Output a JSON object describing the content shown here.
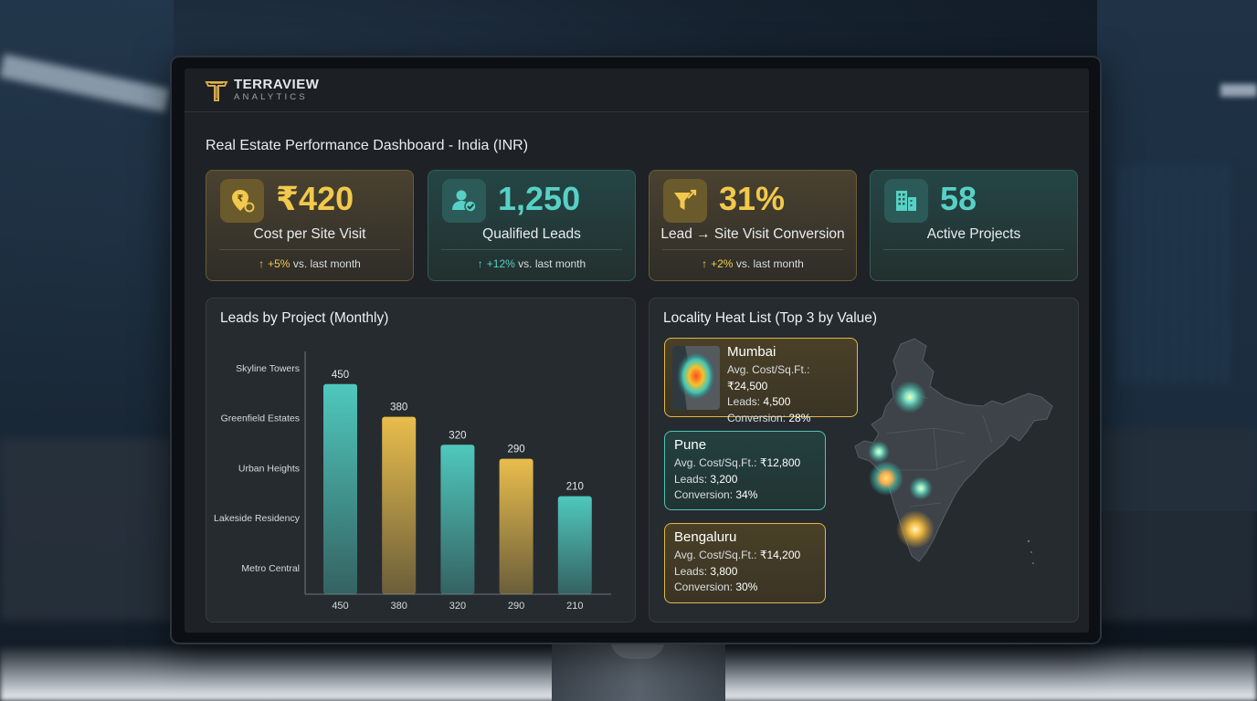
{
  "brand": {
    "name": "TERRAVIEW",
    "sub": "ANALYTICS"
  },
  "dashboard_title": "Real Estate Performance Dashboard - India (INR)",
  "kpis": [
    {
      "value": "₹420",
      "label": "Cost per Site Visit",
      "arrow": "↑",
      "pct": "+5%",
      "suffix": " vs. last month",
      "theme": "gold",
      "icon": "location-pin-rupee-icon"
    },
    {
      "value": "1,250",
      "label": "Qualified Leads",
      "arrow": "↑",
      "pct": "+12%",
      "suffix": " vs. last month",
      "theme": "teal",
      "icon": "user-check-icon"
    },
    {
      "value": "31%",
      "label": "Lead → Site Visit Conversion",
      "arrow": "↑",
      "pct": "+2%",
      "suffix": " vs. last month",
      "theme": "gold",
      "icon": "funnel-icon"
    },
    {
      "value": "58",
      "label": "Active Projects",
      "arrow": "",
      "pct": "",
      "suffix": "",
      "theme": "teal",
      "icon": "buildings-icon"
    }
  ],
  "leads_panel": {
    "title": "Leads by Project (Monthly)"
  },
  "chart_data": {
    "type": "bar",
    "title": "Leads by Project (Monthly)",
    "categories": [
      "Skyline Towers",
      "Greenfield Estates",
      "Urban Heights",
      "Lakeside Residency",
      "Metro Central"
    ],
    "values": [
      450,
      380,
      320,
      290,
      210
    ],
    "x_tick_labels": [
      "450",
      "380",
      "320",
      "290",
      "210"
    ],
    "bar_colors": [
      "#4fc8bd",
      "#e9bd4d",
      "#4fc8bd",
      "#e9bd4d",
      "#4fc8bd"
    ],
    "ylim": [
      0,
      520
    ],
    "grid": false,
    "legend": "none"
  },
  "locality_panel": {
    "title": "Locality Heat List (Top 3 by Value)",
    "cards": [
      {
        "city": "Mumbai",
        "cost_label": "Avg. Cost/Sq.Ft.: ",
        "cost": "₹24,500",
        "leads_label": "Leads: ",
        "leads": "4,500",
        "conv_label": "Conversion: ",
        "conv": "28%",
        "theme": "gold"
      },
      {
        "city": "Pune",
        "cost_label": "Avg. Cost/Sq.Ft.: ",
        "cost": "₹12,800",
        "leads_label": "Leads: ",
        "leads": "3,200",
        "conv_label": "Conversion: ",
        "conv": "34%",
        "theme": "teal"
      },
      {
        "city": "Bengaluru",
        "cost_label": "Avg. Cost/Sq.Ft.: ",
        "cost": "₹14,200",
        "leads_label": "Leads: ",
        "leads": "3,800",
        "conv_label": "Conversion: ",
        "conv": "30%",
        "theme": "gold"
      }
    ]
  },
  "colors": {
    "gold": "#f2c94c",
    "teal": "#57d1c5",
    "screen_bg": "#1e2226",
    "panel_bg": "#262b30"
  }
}
